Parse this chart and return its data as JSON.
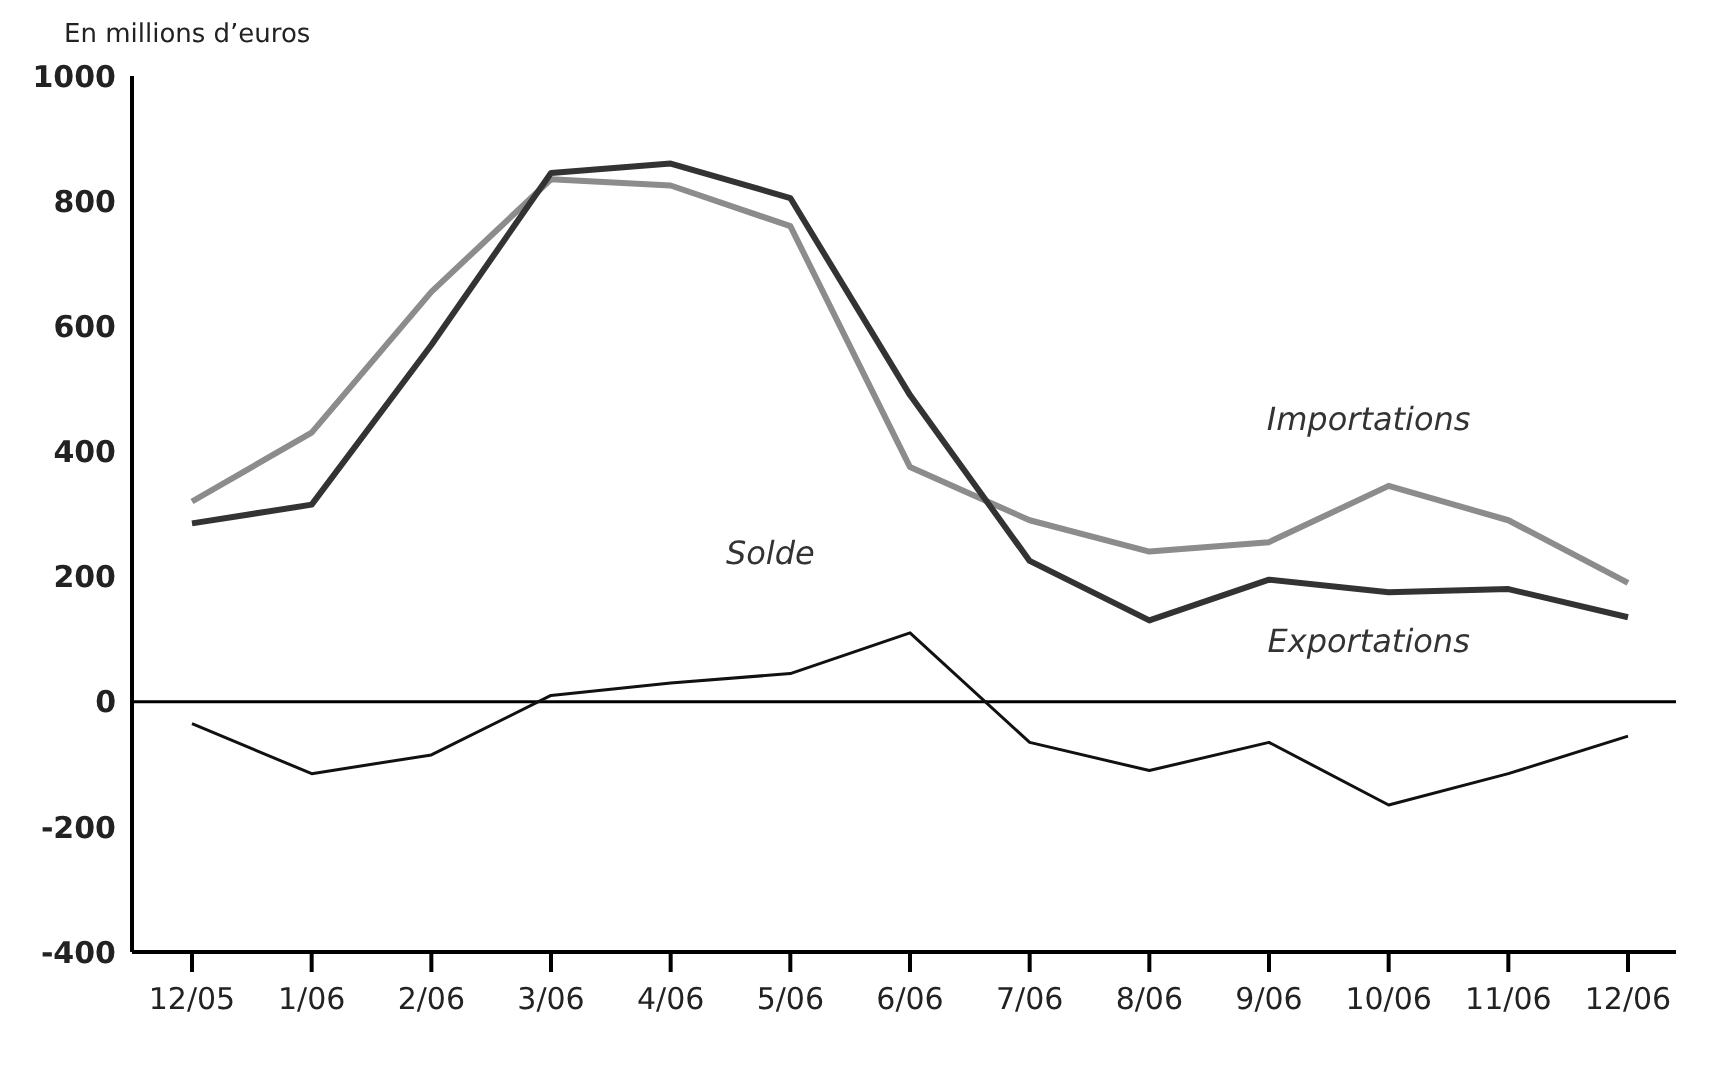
{
  "chart_data": {
    "type": "line",
    "ylabel": "En millions d’euros",
    "categories": [
      "12/05",
      "1/06",
      "2/06",
      "3/06",
      "4/06",
      "5/06",
      "6/06",
      "7/06",
      "8/06",
      "9/06",
      "10/06",
      "11/06",
      "12/06"
    ],
    "series": [
      {
        "name": "Importations",
        "color": "#8c8c8c",
        "values": [
          320,
          430,
          655,
          835,
          825,
          760,
          375,
          290,
          240,
          255,
          345,
          290,
          190
        ]
      },
      {
        "name": "Exportations",
        "color": "#333333",
        "values": [
          285,
          315,
          570,
          845,
          860,
          805,
          490,
          225,
          130,
          195,
          175,
          180,
          135
        ]
      },
      {
        "name": "Solde",
        "color": "#111111",
        "values": [
          -35,
          -115,
          -85,
          10,
          30,
          45,
          110,
          -65,
          -110,
          -65,
          -165,
          -115,
          -55
        ]
      }
    ],
    "ylim": [
      -400,
      1000
    ],
    "yticks": [
      -400,
      -200,
      0,
      200,
      400,
      600,
      800,
      1000
    ],
    "ref_lines": [
      {
        "axis": "y",
        "value": 0,
        "color": "#000000"
      }
    ],
    "marker": "none",
    "line_style": "solid",
    "grid": false
  }
}
